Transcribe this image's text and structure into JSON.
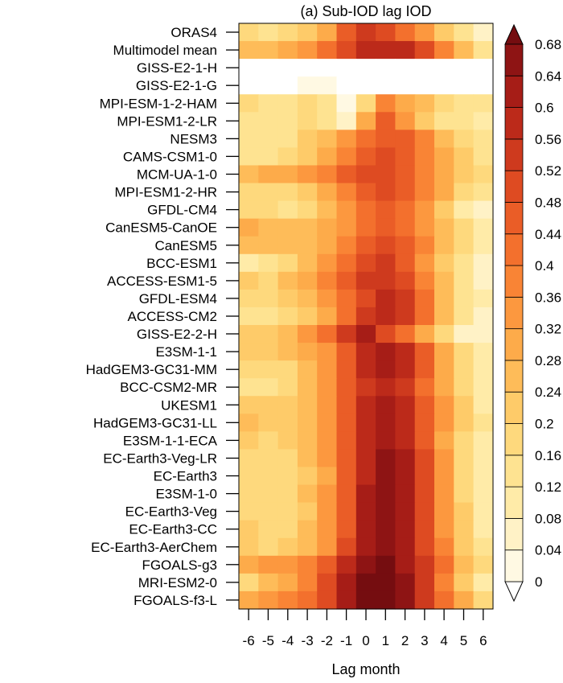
{
  "chart_data": {
    "type": "heatmap",
    "title": "(a) Sub-IOD lag IOD",
    "xlabel": "Lag month",
    "ylabel": "",
    "x": [
      -6,
      -5,
      -4,
      -3,
      -2,
      -1,
      0,
      1,
      2,
      3,
      4,
      5,
      6
    ],
    "x_tick_labels": [
      "-6",
      "-5",
      "-4",
      "-3",
      "-2",
      "-1",
      "0",
      "1",
      "2",
      "3",
      "4",
      "5",
      "6"
    ],
    "rows": [
      "ORAS4",
      "Multimodel mean",
      "GISS-E2-1-H",
      "GISS-E2-1-G",
      "MPI-ESM-1-2-HAM",
      "MPI-ESM1-2-LR",
      "NESM3",
      "CAMS-CSM1-0",
      "MCM-UA-1-0",
      "MPI-ESM1-2-HR",
      "GFDL-CM4",
      "CanESM5-CanOE",
      "CanESM5",
      "BCC-ESM1",
      "ACCESS-ESM1-5",
      "GFDL-ESM4",
      "ACCESS-CM2",
      "GISS-E2-2-H",
      "E3SM-1-1",
      "HadGEM3-GC31-MM",
      "BCC-CSM2-MR",
      "UKESM1",
      "HadGEM3-GC31-LL",
      "E3SM-1-1-ECA",
      "EC-Earth3-Veg-LR",
      "EC-Earth3",
      "E3SM-1-0",
      "EC-Earth3-Veg",
      "EC-Earth3-CC",
      "EC-Earth3-AerChem",
      "FGOALS-g3",
      "MRI-ESM2-0",
      "FGOALS-f3-L"
    ],
    "values": [
      [
        0.16,
        0.14,
        0.16,
        0.22,
        0.28,
        0.44,
        0.52,
        0.5,
        0.42,
        0.32,
        0.2,
        0.12,
        0.04
      ],
      [
        0.24,
        0.26,
        0.28,
        0.32,
        0.4,
        0.5,
        0.56,
        0.58,
        0.56,
        0.48,
        0.36,
        0.24,
        0.14
      ],
      [
        0.0,
        0.0,
        0.0,
        0.0,
        0.0,
        0.0,
        0.0,
        0.0,
        0.0,
        0.0,
        0.0,
        0.0,
        0.0
      ],
      [
        0.0,
        0.0,
        0.0,
        0.02,
        0.02,
        0.0,
        0.0,
        0.0,
        0.0,
        0.0,
        0.0,
        0.0,
        0.0
      ],
      [
        0.16,
        0.14,
        0.14,
        0.16,
        0.12,
        0.02,
        0.16,
        0.36,
        0.3,
        0.24,
        0.18,
        0.14,
        0.12
      ],
      [
        0.14,
        0.12,
        0.14,
        0.16,
        0.12,
        0.04,
        0.3,
        0.44,
        0.34,
        0.2,
        0.14,
        0.12,
        0.08
      ],
      [
        0.14,
        0.12,
        0.14,
        0.2,
        0.24,
        0.34,
        0.42,
        0.46,
        0.44,
        0.36,
        0.26,
        0.18,
        0.12
      ],
      [
        0.14,
        0.14,
        0.16,
        0.22,
        0.28,
        0.36,
        0.44,
        0.48,
        0.46,
        0.38,
        0.28,
        0.2,
        0.12
      ],
      [
        0.26,
        0.28,
        0.3,
        0.32,
        0.38,
        0.46,
        0.5,
        0.48,
        0.44,
        0.38,
        0.3,
        0.22,
        0.16
      ],
      [
        0.18,
        0.16,
        0.18,
        0.22,
        0.28,
        0.38,
        0.46,
        0.5,
        0.46,
        0.38,
        0.28,
        0.18,
        0.12
      ],
      [
        0.18,
        0.16,
        0.14,
        0.18,
        0.24,
        0.34,
        0.42,
        0.46,
        0.42,
        0.32,
        0.22,
        0.1,
        0.06
      ],
      [
        0.28,
        0.26,
        0.26,
        0.26,
        0.3,
        0.34,
        0.4,
        0.44,
        0.4,
        0.32,
        0.24,
        0.16,
        0.1
      ],
      [
        0.26,
        0.24,
        0.24,
        0.26,
        0.3,
        0.38,
        0.44,
        0.48,
        0.44,
        0.36,
        0.26,
        0.18,
        0.1
      ],
      [
        0.1,
        0.14,
        0.18,
        0.24,
        0.32,
        0.42,
        0.5,
        0.52,
        0.46,
        0.34,
        0.22,
        0.12,
        0.06
      ],
      [
        0.2,
        0.18,
        0.24,
        0.3,
        0.36,
        0.46,
        0.52,
        0.54,
        0.48,
        0.38,
        0.26,
        0.14,
        0.06
      ],
      [
        0.16,
        0.18,
        0.2,
        0.24,
        0.32,
        0.42,
        0.5,
        0.56,
        0.52,
        0.4,
        0.26,
        0.14,
        0.08
      ],
      [
        0.12,
        0.12,
        0.16,
        0.22,
        0.3,
        0.42,
        0.52,
        0.56,
        0.52,
        0.4,
        0.26,
        0.12,
        0.06
      ],
      [
        0.2,
        0.22,
        0.26,
        0.32,
        0.4,
        0.54,
        0.6,
        0.5,
        0.4,
        0.28,
        0.18,
        0.04,
        0.04
      ],
      [
        0.22,
        0.22,
        0.24,
        0.28,
        0.34,
        0.46,
        0.56,
        0.6,
        0.56,
        0.44,
        0.3,
        0.18,
        0.1
      ],
      [
        0.18,
        0.16,
        0.18,
        0.24,
        0.32,
        0.44,
        0.56,
        0.6,
        0.56,
        0.44,
        0.3,
        0.18,
        0.1
      ],
      [
        0.14,
        0.14,
        0.18,
        0.24,
        0.32,
        0.44,
        0.54,
        0.58,
        0.54,
        0.42,
        0.28,
        0.16,
        0.08
      ],
      [
        0.22,
        0.2,
        0.22,
        0.26,
        0.34,
        0.46,
        0.58,
        0.62,
        0.58,
        0.46,
        0.32,
        0.2,
        0.1
      ],
      [
        0.24,
        0.2,
        0.22,
        0.26,
        0.34,
        0.46,
        0.58,
        0.62,
        0.58,
        0.46,
        0.32,
        0.2,
        0.12
      ],
      [
        0.2,
        0.18,
        0.2,
        0.26,
        0.34,
        0.46,
        0.58,
        0.62,
        0.58,
        0.46,
        0.3,
        0.18,
        0.1
      ],
      [
        0.18,
        0.16,
        0.18,
        0.24,
        0.32,
        0.44,
        0.58,
        0.64,
        0.6,
        0.48,
        0.32,
        0.18,
        0.08
      ],
      [
        0.18,
        0.16,
        0.16,
        0.22,
        0.3,
        0.44,
        0.58,
        0.66,
        0.62,
        0.5,
        0.34,
        0.18,
        0.08
      ],
      [
        0.18,
        0.16,
        0.18,
        0.24,
        0.32,
        0.46,
        0.6,
        0.66,
        0.62,
        0.5,
        0.34,
        0.18,
        0.08
      ],
      [
        0.18,
        0.16,
        0.18,
        0.22,
        0.32,
        0.46,
        0.6,
        0.66,
        0.62,
        0.5,
        0.34,
        0.2,
        0.1
      ],
      [
        0.2,
        0.18,
        0.18,
        0.24,
        0.32,
        0.46,
        0.6,
        0.66,
        0.62,
        0.5,
        0.34,
        0.2,
        0.1
      ],
      [
        0.2,
        0.18,
        0.2,
        0.26,
        0.34,
        0.48,
        0.6,
        0.66,
        0.62,
        0.5,
        0.36,
        0.22,
        0.12
      ],
      [
        0.3,
        0.32,
        0.34,
        0.38,
        0.46,
        0.56,
        0.66,
        0.68,
        0.62,
        0.52,
        0.4,
        0.26,
        0.16
      ],
      [
        0.18,
        0.24,
        0.3,
        0.38,
        0.48,
        0.6,
        0.68,
        0.68,
        0.64,
        0.52,
        0.38,
        0.22,
        0.1
      ],
      [
        0.28,
        0.32,
        0.36,
        0.42,
        0.5,
        0.6,
        0.68,
        0.68,
        0.64,
        0.54,
        0.42,
        0.28,
        0.16
      ]
    ],
    "colorbar": {
      "levels": [
        0,
        0.04,
        0.08,
        0.12,
        0.16,
        0.2,
        0.24,
        0.28,
        0.32,
        0.36,
        0.4,
        0.44,
        0.48,
        0.52,
        0.56,
        0.6,
        0.64,
        0.68
      ],
      "labels": [
        "0",
        "0.04",
        "0.08",
        "0.12",
        "0.16",
        "0.2",
        "0.24",
        "0.28",
        "0.32",
        "0.36",
        "0.4",
        "0.44",
        "0.48",
        "0.52",
        "0.56",
        "0.6",
        "0.64",
        "0.68"
      ],
      "colors": [
        "#ffffff",
        "#fff9e3",
        "#fff2c6",
        "#ffeba8",
        "#fee391",
        "#fed97d",
        "#fecb69",
        "#febc59",
        "#fdab4a",
        "#fc983f",
        "#f98435",
        "#f3702d",
        "#ea5d27",
        "#de4b22",
        "#ce3a1e",
        "#bc2a1a",
        "#a61d17",
        "#8e1414",
        "#750d10"
      ]
    }
  }
}
